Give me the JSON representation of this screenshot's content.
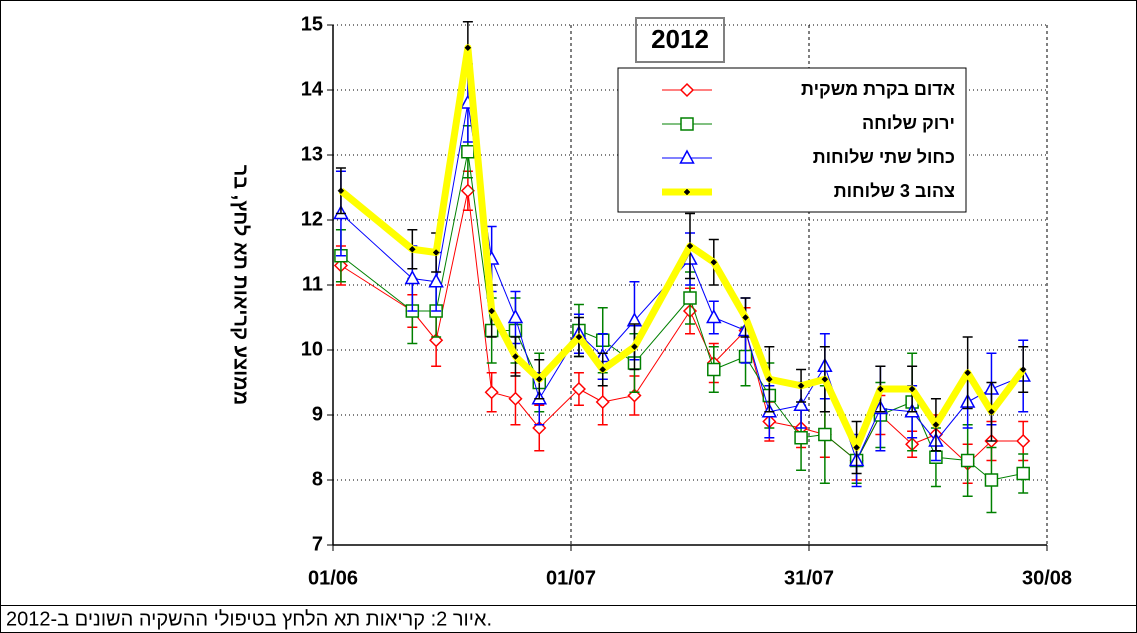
{
  "chart_data": {
    "type": "line",
    "title": "2012",
    "y_label": "ממוצע קריאות תא לחץ, בר",
    "caption": "איור 2: קריאות תא הלחץ בטיפולי ההשקיה השונים ב-2012.",
    "x": [
      "02/06",
      "11/06",
      "14/06",
      "18/06",
      "21/06",
      "24/06",
      "27/06",
      "02/07",
      "05/07",
      "09/07",
      "16/07",
      "19/07",
      "23/07",
      "26/07",
      "30/07",
      "02/08",
      "06/08",
      "09/08",
      "13/08",
      "16/08",
      "20/08",
      "23/08",
      "27/08"
    ],
    "xlim": [
      "01/06",
      "30/08"
    ],
    "xticks": [
      "01/06",
      "01/07",
      "31/07",
      "30/08"
    ],
    "ylim": [
      7,
      15
    ],
    "yticks": [
      7,
      8,
      9,
      10,
      11,
      12,
      13,
      14,
      15
    ],
    "grid": true,
    "legend": "top-right",
    "series": [
      {
        "name": "אדום בקרת משקית",
        "color": "#ff0000",
        "marker": "diamond",
        "values": [
          11.3,
          10.6,
          10.15,
          12.45,
          9.35,
          9.25,
          8.8,
          9.4,
          9.2,
          9.3,
          10.6,
          9.8,
          10.3,
          8.9,
          8.8,
          8.7,
          8.3,
          9.0,
          8.55,
          8.7,
          8.25,
          8.6,
          8.6
        ],
        "errors": [
          0.3,
          0.25,
          0.4,
          0.3,
          0.3,
          0.4,
          0.35,
          0.25,
          0.35,
          0.3,
          0.35,
          0.3,
          0.35,
          0.3,
          0.3,
          0.35,
          0.3,
          0.3,
          0.2,
          0.3,
          0.3,
          0.3,
          0.3
        ]
      },
      {
        "name": "ירוק שלוחה",
        "color": "#008000",
        "marker": "square",
        "values": [
          11.45,
          10.6,
          10.6,
          13.05,
          10.3,
          10.3,
          9.5,
          10.3,
          10.15,
          9.8,
          10.8,
          9.7,
          9.9,
          9.3,
          8.65,
          8.7,
          8.3,
          9.0,
          9.2,
          8.35,
          8.3,
          8.0,
          8.1
        ],
        "errors": [
          0.4,
          0.5,
          0.4,
          0.4,
          0.5,
          0.5,
          0.45,
          0.4,
          0.5,
          0.45,
          0.4,
          0.35,
          0.45,
          0.5,
          0.5,
          0.75,
          0.35,
          0.5,
          0.75,
          0.45,
          0.55,
          0.5,
          0.3
        ]
      },
      {
        "name": "כחול שתי שלוחות",
        "color": "#0000ff",
        "marker": "triangle",
        "values": [
          12.1,
          11.1,
          11.05,
          13.8,
          11.4,
          10.5,
          9.25,
          10.25,
          9.9,
          10.45,
          11.4,
          10.5,
          10.3,
          9.05,
          9.15,
          9.75,
          8.3,
          9.1,
          9.05,
          8.6,
          9.2,
          9.4,
          9.6
        ],
        "errors": [
          0.65,
          0.5,
          0.45,
          0.6,
          0.5,
          0.4,
          0.4,
          0.3,
          0.35,
          0.6,
          0.4,
          0.25,
          0.5,
          0.4,
          0.35,
          0.5,
          0.4,
          0.65,
          0.4,
          0.3,
          0.4,
          0.55,
          0.55
        ]
      },
      {
        "name": "צהוב  3 שלוחות",
        "color": "#ffff00",
        "marker": "dot",
        "values": [
          12.45,
          11.55,
          11.5,
          14.65,
          10.6,
          9.9,
          9.55,
          10.2,
          9.7,
          10.05,
          11.6,
          11.35,
          10.5,
          9.55,
          9.45,
          9.55,
          8.5,
          9.4,
          9.4,
          8.85,
          9.65,
          9.05,
          9.7
        ],
        "errors": [
          0.35,
          0.3,
          0.3,
          0.4,
          0.4,
          0.3,
          0.3,
          0.3,
          0.25,
          0.35,
          0.5,
          0.35,
          0.3,
          0.5,
          0.25,
          0.5,
          0.4,
          0.35,
          0.35,
          0.4,
          0.55,
          0.45,
          0.35
        ]
      }
    ]
  }
}
